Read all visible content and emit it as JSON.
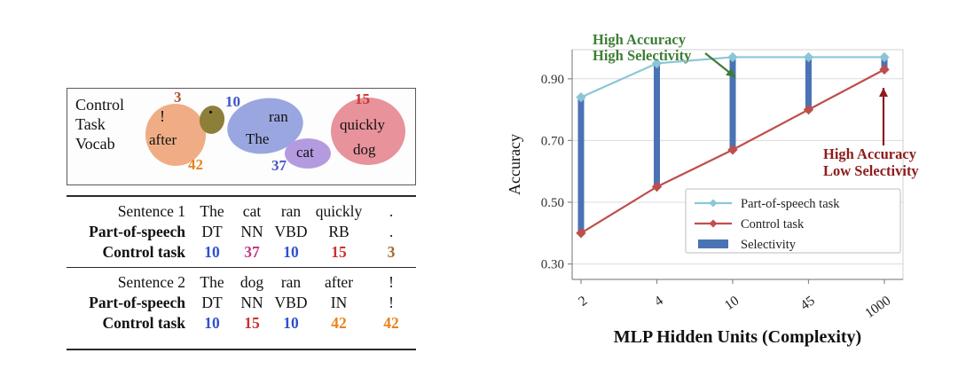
{
  "figure": {
    "left": {
      "vocab_box": {
        "title_lines": [
          "Control",
          "Task",
          "Vocab"
        ],
        "groups": {
          "orange": {
            "fill": "#f0ad85",
            "words": {
              "exclaim": "!",
              "after": "after"
            },
            "label": {
              "text": "42",
              "color": "#e6841e"
            }
          },
          "olive": {
            "fill": "#8d7f3a",
            "words": {
              "period": "."
            },
            "label": {
              "text": "3",
              "color": "#b5532f"
            }
          },
          "blue": {
            "fill": "#9aa6e0",
            "words": {
              "ran": "ran",
              "the": "The"
            },
            "label": {
              "text": "10",
              "color": "#3a55c8"
            }
          },
          "purple": {
            "fill": "#b49be0",
            "words": {
              "cat": "cat"
            },
            "label": {
              "text": "37",
              "color": "#4b56c8"
            }
          },
          "pink": {
            "fill": "#e8929b",
            "words": {
              "quickly": "quickly",
              "dog": "dog"
            },
            "label": {
              "text": "15",
              "color": "#cc3333"
            }
          }
        }
      },
      "table": {
        "blocks": [
          {
            "rows": [
              {
                "label": "Sentence 1",
                "label_bold": false,
                "cells": [
                  {
                    "t": "The"
                  },
                  {
                    "t": "cat"
                  },
                  {
                    "t": "ran"
                  },
                  {
                    "t": "quickly"
                  },
                  {
                    "t": "."
                  }
                ]
              },
              {
                "label": "Part-of-speech",
                "label_bold": true,
                "cells": [
                  {
                    "t": "DT"
                  },
                  {
                    "t": "NN"
                  },
                  {
                    "t": "VBD"
                  },
                  {
                    "t": "RB"
                  },
                  {
                    "t": "."
                  }
                ]
              },
              {
                "label": "Control task",
                "label_bold": true,
                "cells": [
                  {
                    "t": "10",
                    "c": "#2e4fce",
                    "b": true
                  },
                  {
                    "t": "37",
                    "c": "#c23a85",
                    "b": true
                  },
                  {
                    "t": "10",
                    "c": "#2e4fce",
                    "b": true
                  },
                  {
                    "t": "15",
                    "c": "#cc2f2f",
                    "b": true
                  },
                  {
                    "t": "3",
                    "c": "#a06a2c",
                    "b": true
                  }
                ]
              }
            ]
          },
          {
            "rows": [
              {
                "label": "Sentence 2",
                "label_bold": false,
                "cells": [
                  {
                    "t": "The"
                  },
                  {
                    "t": "dog"
                  },
                  {
                    "t": "ran"
                  },
                  {
                    "t": "after"
                  },
                  {
                    "t": "!"
                  }
                ]
              },
              {
                "label": "Part-of-speech",
                "label_bold": true,
                "cells": [
                  {
                    "t": "DT"
                  },
                  {
                    "t": "NN"
                  },
                  {
                    "t": "VBD"
                  },
                  {
                    "t": "IN"
                  },
                  {
                    "t": "!"
                  }
                ]
              },
              {
                "label": "Control task",
                "label_bold": true,
                "cells": [
                  {
                    "t": "10",
                    "c": "#2e4fce",
                    "b": true
                  },
                  {
                    "t": "15",
                    "c": "#cc2f2f",
                    "b": true
                  },
                  {
                    "t": "10",
                    "c": "#2e4fce",
                    "b": true
                  },
                  {
                    "t": "42",
                    "c": "#e6841e",
                    "b": true
                  },
                  {
                    "t": "42",
                    "c": "#e6841e",
                    "b": true
                  }
                ]
              }
            ]
          }
        ]
      }
    }
  },
  "chart_data": {
    "type": "line",
    "xlabel": "MLP Hidden Units (Complexity)",
    "ylabel": "Accuracy",
    "x_categories": [
      "2",
      "4",
      "10",
      "45",
      "1000"
    ],
    "yticks": [
      0.3,
      0.5,
      0.7,
      0.9
    ],
    "ylim": [
      0.25,
      1.0
    ],
    "grid": "horizontal",
    "legend_position": "lower right",
    "series": [
      {
        "name": "Part-of-speech task",
        "color": "#8ac6d6",
        "marker": "diamond",
        "values": [
          0.84,
          0.95,
          0.97,
          0.97,
          0.97
        ]
      },
      {
        "name": "Control task",
        "color": "#bf4f4c",
        "marker": "diamond",
        "values": [
          0.4,
          0.55,
          0.67,
          0.8,
          0.93
        ]
      },
      {
        "name": "Selectivity",
        "color": "#4a73b4",
        "marker": "bar",
        "values": [
          0.44,
          0.4,
          0.3,
          0.17,
          0.04
        ]
      }
    ],
    "selectivity": {
      "name": "Selectivity",
      "color": "#4a73b4"
    },
    "annotations": [
      {
        "lines": [
          "High Accuracy",
          "High Selectivity"
        ],
        "color": "#3d7d35"
      },
      {
        "lines": [
          "High Accuracy",
          "Low Selectivity"
        ],
        "color": "#8e1c1c"
      }
    ]
  }
}
